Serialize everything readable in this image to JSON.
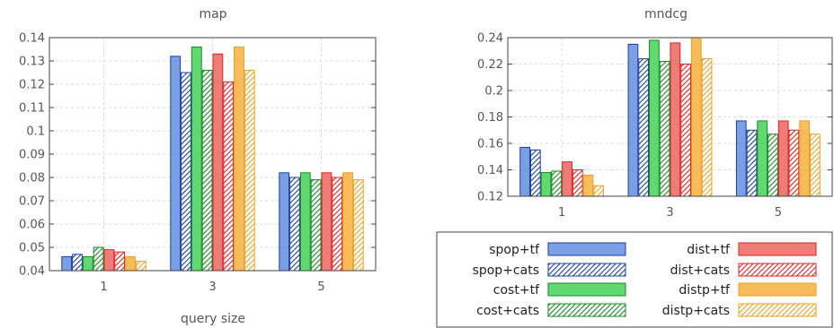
{
  "colors": {
    "spop": "#4f7fdc",
    "cost": "#2ecc40",
    "dist": "#e8524a",
    "distp": "#f5a623"
  },
  "chart_data": [
    {
      "type": "bar",
      "title": "map",
      "xlabel": "query size",
      "ylabel": "",
      "categories": [
        "1",
        "3",
        "5"
      ],
      "ylim": [
        0.04,
        0.14
      ],
      "yticks": [
        "0.04",
        "0.05",
        "0.06",
        "0.07",
        "0.08",
        "0.09",
        "0.1",
        "0.11",
        "0.12",
        "0.13",
        "0.14"
      ],
      "series": [
        {
          "name": "spop+tf",
          "values": [
            0.046,
            0.132,
            0.082
          ]
        },
        {
          "name": "spop+cats",
          "values": [
            0.047,
            0.125,
            0.08
          ]
        },
        {
          "name": "cost+tf",
          "values": [
            0.046,
            0.136,
            0.082
          ]
        },
        {
          "name": "cost+cats",
          "values": [
            0.05,
            0.126,
            0.079
          ]
        },
        {
          "name": "dist+tf",
          "values": [
            0.049,
            0.133,
            0.082
          ]
        },
        {
          "name": "dist+cats",
          "values": [
            0.048,
            0.121,
            0.08
          ]
        },
        {
          "name": "distp+tf",
          "values": [
            0.046,
            0.136,
            0.082
          ]
        },
        {
          "name": "distp+cats",
          "values": [
            0.044,
            0.126,
            0.079
          ]
        }
      ]
    },
    {
      "type": "bar",
      "title": "mndcg",
      "xlabel": "",
      "ylabel": "",
      "categories": [
        "1",
        "3",
        "5"
      ],
      "ylim": [
        0.12,
        0.24
      ],
      "yticks": [
        "0.12",
        "0.14",
        "0.16",
        "0.18",
        "0.2",
        "0.22",
        "0.24"
      ],
      "series": [
        {
          "name": "spop+tf",
          "values": [
            0.157,
            0.235,
            0.177
          ]
        },
        {
          "name": "spop+cats",
          "values": [
            0.155,
            0.224,
            0.17
          ]
        },
        {
          "name": "cost+tf",
          "values": [
            0.138,
            0.238,
            0.177
          ]
        },
        {
          "name": "cost+cats",
          "values": [
            0.139,
            0.222,
            0.167
          ]
        },
        {
          "name": "dist+tf",
          "values": [
            0.146,
            0.236,
            0.177
          ]
        },
        {
          "name": "dist+cats",
          "values": [
            0.14,
            0.22,
            0.17
          ]
        },
        {
          "name": "distp+tf",
          "values": [
            0.136,
            0.24,
            0.177
          ]
        },
        {
          "name": "distp+cats",
          "values": [
            0.128,
            0.224,
            0.167
          ]
        }
      ]
    }
  ],
  "legend": {
    "placement": "bottom-right",
    "items": [
      "spop+tf",
      "spop+cats",
      "cost+tf",
      "cost+cats",
      "dist+tf",
      "dist+cats",
      "distp+tf",
      "distp+cats"
    ]
  }
}
